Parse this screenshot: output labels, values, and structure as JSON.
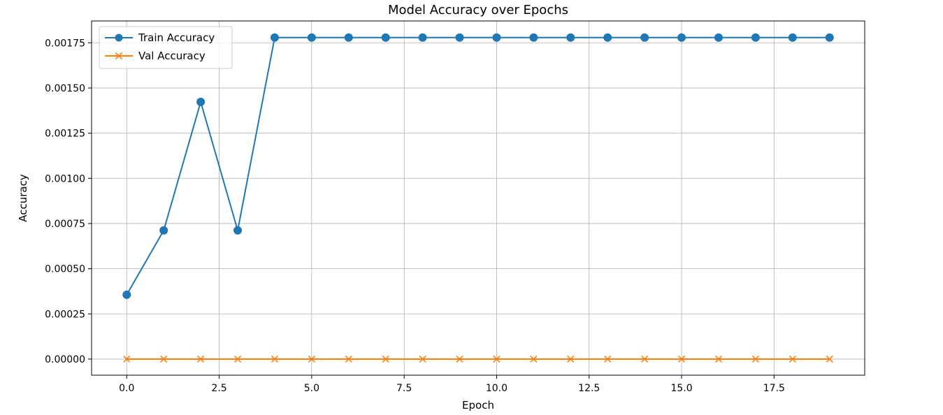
{
  "chart_data": {
    "type": "line",
    "title": "Model Accuracy over Epochs",
    "xlabel": "Epoch",
    "ylabel": "Accuracy",
    "xlim": [
      -0.95,
      19.95
    ],
    "ylim": [
      -8.91e-05,
      0.0018709
    ],
    "xticks": [
      0.0,
      2.5,
      5.0,
      7.5,
      10.0,
      12.5,
      15.0,
      17.5
    ],
    "xtick_labels": [
      "0.0",
      "2.5",
      "5.0",
      "7.5",
      "10.0",
      "12.5",
      "15.0",
      "17.5"
    ],
    "yticks": [
      0.0,
      0.00025,
      0.0005,
      0.00075,
      0.001,
      0.00125,
      0.0015,
      0.00175
    ],
    "ytick_labels": [
      "0.00000",
      "0.00025",
      "0.00050",
      "0.00075",
      "0.00100",
      "0.00125",
      "0.00150",
      "0.00175"
    ],
    "grid": true,
    "legend_position": "top-left",
    "x": [
      0,
      1,
      2,
      3,
      4,
      5,
      6,
      7,
      8,
      9,
      10,
      11,
      12,
      13,
      14,
      15,
      16,
      17,
      18,
      19
    ],
    "series": [
      {
        "name": "Train Accuracy",
        "color": "#1f77b4",
        "marker": "circle",
        "values": [
          0.000356,
          0.000712,
          0.001423,
          0.000712,
          0.001779,
          0.001779,
          0.001779,
          0.001779,
          0.001779,
          0.001779,
          0.001779,
          0.001779,
          0.001779,
          0.001779,
          0.001779,
          0.001779,
          0.001779,
          0.001779,
          0.001779,
          0.001779
        ]
      },
      {
        "name": "Val Accuracy",
        "color": "#ff7f0e",
        "marker": "x",
        "values": [
          0,
          0,
          0,
          0,
          0,
          0,
          0,
          0,
          0,
          0,
          0,
          0,
          0,
          0,
          0,
          0,
          0,
          0,
          0,
          0
        ]
      }
    ]
  }
}
